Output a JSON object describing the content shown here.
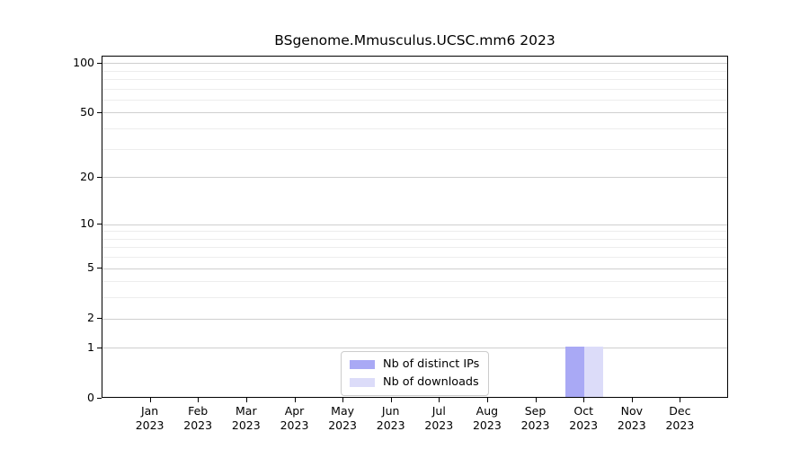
{
  "chart_data": {
    "type": "bar",
    "title": "BSgenome.Mmusculus.UCSC.mm6 2023",
    "xlabel": "",
    "ylabel": "",
    "year_label": "2023",
    "months": [
      "Jan",
      "Feb",
      "Mar",
      "Apr",
      "May",
      "Jun",
      "Jul",
      "Aug",
      "Sep",
      "Oct",
      "Nov",
      "Dec"
    ],
    "categories": [
      "Jan 2023",
      "Feb 2023",
      "Mar 2023",
      "Apr 2023",
      "May 2023",
      "Jun 2023",
      "Jul 2023",
      "Aug 2023",
      "Sep 2023",
      "Oct 2023",
      "Nov 2023",
      "Dec 2023"
    ],
    "series": [
      {
        "name": "Nb of distinct IPs",
        "color": "#a9a9f5",
        "values": [
          0,
          0,
          0,
          0,
          0,
          0,
          0,
          0,
          0,
          1,
          0,
          0
        ]
      },
      {
        "name": "Nb of downloads",
        "color": "#dcdcf9",
        "values": [
          0,
          0,
          0,
          0,
          0,
          0,
          0,
          0,
          0,
          1,
          0,
          0
        ]
      }
    ],
    "y_scale": "log1p",
    "ylim": [
      0,
      110
    ],
    "y_ticks": [
      0,
      1,
      2,
      5,
      10,
      20,
      50,
      100
    ],
    "y_tick_labels": [
      "0",
      "1",
      "2",
      "5",
      "10",
      "20",
      "50",
      "100"
    ],
    "y_minor_gridlines": [
      3,
      4,
      6,
      7,
      8,
      9,
      30,
      40,
      60,
      70,
      80,
      90
    ],
    "grid": "horizontal",
    "legend_position": "lower-center"
  },
  "colors": {
    "background": "#ffffff",
    "axis": "#000000",
    "grid_major": "#cfcfcf",
    "grid_minor": "#ededed",
    "legend_border": "#cccccc"
  }
}
